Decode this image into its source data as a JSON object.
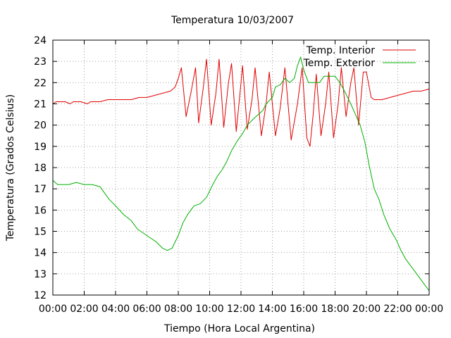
{
  "chart_data": {
    "type": "line",
    "title": "Temperatura 10/03/2007",
    "xlabel": "Tiempo (Hora Local Argentina)",
    "ylabel": "Temperatura (Grados Celsius)",
    "xlim": [
      0,
      24
    ],
    "ylim": [
      12,
      24
    ],
    "x_ticks": [
      "00:00",
      "02:00",
      "04:00",
      "06:00",
      "08:00",
      "10:00",
      "12:00",
      "14:00",
      "16:00",
      "18:00",
      "20:00",
      "22:00",
      "00:00"
    ],
    "y_ticks": [
      12,
      13,
      14,
      15,
      16,
      17,
      18,
      19,
      20,
      21,
      22,
      23,
      24
    ],
    "grid": true,
    "legend_position": "top-right",
    "series": [
      {
        "name": "Temp. Interior",
        "color": "#e00000",
        "points": [
          [
            0,
            21.0
          ],
          [
            0.2,
            21.1
          ],
          [
            0.8,
            21.1
          ],
          [
            1.1,
            21.0
          ],
          [
            1.3,
            21.1
          ],
          [
            1.8,
            21.1
          ],
          [
            2.2,
            21.0
          ],
          [
            2.4,
            21.1
          ],
          [
            3,
            21.1
          ],
          [
            3.5,
            21.2
          ],
          [
            4,
            21.2
          ],
          [
            5,
            21.2
          ],
          [
            5.5,
            21.3
          ],
          [
            6,
            21.3
          ],
          [
            6.5,
            21.4
          ],
          [
            7,
            21.5
          ],
          [
            7.5,
            21.6
          ],
          [
            7.8,
            21.8
          ],
          [
            8,
            22.2
          ],
          [
            8.2,
            22.7
          ],
          [
            8.5,
            20.4
          ],
          [
            8.8,
            21.5
          ],
          [
            9.1,
            22.7
          ],
          [
            9.3,
            20.1
          ],
          [
            9.6,
            21.8
          ],
          [
            9.8,
            23.1
          ],
          [
            10.1,
            20.0
          ],
          [
            10.4,
            21.5
          ],
          [
            10.6,
            23.1
          ],
          [
            10.9,
            19.9
          ],
          [
            11.2,
            22.0
          ],
          [
            11.4,
            22.9
          ],
          [
            11.7,
            19.7
          ],
          [
            12,
            22.0
          ],
          [
            12.1,
            22.8
          ],
          [
            12.4,
            19.8
          ],
          [
            12.7,
            21.2
          ],
          [
            12.9,
            22.7
          ],
          [
            13.3,
            19.5
          ],
          [
            13.6,
            21.0
          ],
          [
            13.8,
            22.5
          ],
          [
            14.2,
            19.5
          ],
          [
            14.5,
            20.8
          ],
          [
            14.8,
            22.7
          ],
          [
            15.2,
            19.3
          ],
          [
            15.6,
            21.0
          ],
          [
            15.9,
            22.7
          ],
          [
            16.2,
            19.4
          ],
          [
            16.4,
            19.0
          ],
          [
            16.6,
            20.5
          ],
          [
            16.8,
            22.4
          ],
          [
            17.1,
            19.5
          ],
          [
            17.4,
            21.0
          ],
          [
            17.6,
            22.5
          ],
          [
            17.9,
            19.4
          ],
          [
            18.2,
            21.0
          ],
          [
            18.4,
            22.7
          ],
          [
            18.7,
            20.4
          ],
          [
            19,
            22.0
          ],
          [
            19.2,
            22.7
          ],
          [
            19.5,
            20.0
          ],
          [
            19.8,
            22.5
          ],
          [
            20,
            22.5
          ],
          [
            20.3,
            21.3
          ],
          [
            20.5,
            21.2
          ],
          [
            21,
            21.2
          ],
          [
            21.5,
            21.3
          ],
          [
            22,
            21.4
          ],
          [
            22.5,
            21.5
          ],
          [
            23,
            21.6
          ],
          [
            23.5,
            21.6
          ],
          [
            24,
            21.7
          ]
        ]
      },
      {
        "name": "Temp. Exterior",
        "color": "#00b000",
        "points": [
          [
            0,
            17.4
          ],
          [
            0.3,
            17.2
          ],
          [
            1,
            17.2
          ],
          [
            1.5,
            17.3
          ],
          [
            2,
            17.2
          ],
          [
            2.5,
            17.2
          ],
          [
            3,
            17.1
          ],
          [
            3.3,
            16.8
          ],
          [
            3.6,
            16.5
          ],
          [
            4,
            16.2
          ],
          [
            4.5,
            15.8
          ],
          [
            5,
            15.5
          ],
          [
            5.4,
            15.1
          ],
          [
            5.8,
            14.9
          ],
          [
            6.2,
            14.7
          ],
          [
            6.6,
            14.5
          ],
          [
            7,
            14.2
          ],
          [
            7.3,
            14.1
          ],
          [
            7.6,
            14.2
          ],
          [
            8,
            14.8
          ],
          [
            8.3,
            15.4
          ],
          [
            8.6,
            15.8
          ],
          [
            9,
            16.2
          ],
          [
            9.4,
            16.3
          ],
          [
            9.8,
            16.6
          ],
          [
            10.2,
            17.2
          ],
          [
            10.5,
            17.6
          ],
          [
            10.8,
            17.9
          ],
          [
            11.1,
            18.3
          ],
          [
            11.4,
            18.8
          ],
          [
            11.8,
            19.3
          ],
          [
            12.1,
            19.6
          ],
          [
            12.4,
            20.0
          ],
          [
            12.8,
            20.3
          ],
          [
            13.1,
            20.5
          ],
          [
            13.4,
            20.7
          ],
          [
            13.6,
            21.0
          ],
          [
            14,
            21.3
          ],
          [
            14.2,
            21.8
          ],
          [
            14.5,
            21.9
          ],
          [
            14.8,
            22.2
          ],
          [
            15.1,
            22.0
          ],
          [
            15.4,
            22.2
          ],
          [
            15.6,
            22.8
          ],
          [
            15.8,
            23.2
          ],
          [
            16,
            22.6
          ],
          [
            16.3,
            22.0
          ],
          [
            16.6,
            22.0
          ],
          [
            17,
            22.0
          ],
          [
            17.3,
            22.3
          ],
          [
            17.6,
            22.3
          ],
          [
            18,
            22.3
          ],
          [
            18.3,
            22.0
          ],
          [
            18.6,
            21.6
          ],
          [
            19,
            21.0
          ],
          [
            19.3,
            20.5
          ],
          [
            19.6,
            20.0
          ],
          [
            19.9,
            19.2
          ],
          [
            20.2,
            18.0
          ],
          [
            20.5,
            17.0
          ],
          [
            20.8,
            16.5
          ],
          [
            21.1,
            15.8
          ],
          [
            21.5,
            15.1
          ],
          [
            21.9,
            14.6
          ],
          [
            22.2,
            14.1
          ],
          [
            22.5,
            13.7
          ],
          [
            22.8,
            13.4
          ],
          [
            23.2,
            13.0
          ],
          [
            23.6,
            12.6
          ],
          [
            24,
            12.2
          ]
        ]
      }
    ]
  }
}
